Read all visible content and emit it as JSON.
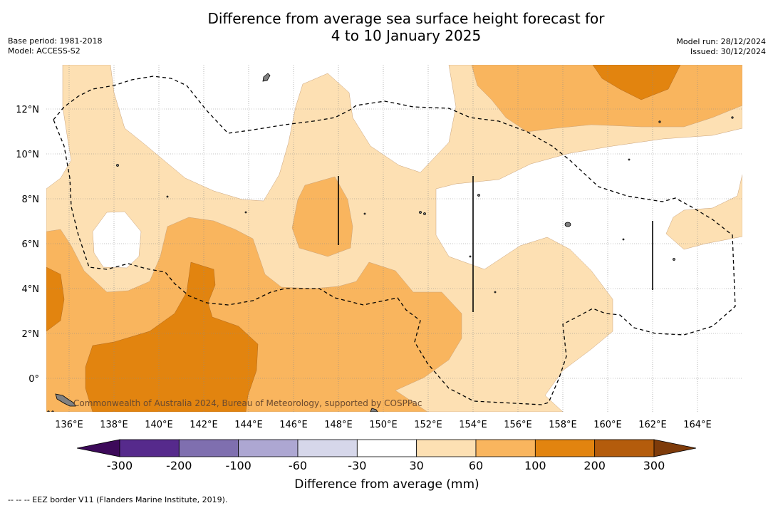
{
  "title": {
    "line1": "Difference from average sea surface height forecast for",
    "line2": "4 to 10 January 2025"
  },
  "meta_left": {
    "base_period": "Base period: 1981-2018",
    "model": "Model: ACCESS-S2"
  },
  "meta_right": {
    "model_run": "Model run: 28/12/2024",
    "issued": "Issued: 30/12/2024"
  },
  "map": {
    "lon_labels": [
      "136°E",
      "138°E",
      "140°E",
      "142°E",
      "144°E",
      "146°E",
      "148°E",
      "150°E",
      "152°E",
      "154°E",
      "156°E",
      "158°E",
      "160°E",
      "162°E",
      "164°E"
    ],
    "lat_labels": [
      "12°N",
      "10°N",
      "8°N",
      "6°N",
      "4°N",
      "2°N",
      "0°"
    ],
    "copyright": "Commonwealth of Australia 2024, Bureau of Meteorology, supported by COSPPac"
  },
  "colorbar": {
    "tick_labels": [
      "-300",
      "-200",
      "-100",
      "-60",
      "-30",
      "30",
      "60",
      "100",
      "200",
      "300"
    ],
    "colors": [
      "#3d0a5a",
      "#562a8c",
      "#7f6faf",
      "#ada7d2",
      "#d6d7ea",
      "#ffffff",
      "#fde0b3",
      "#f9b55e",
      "#e2840f",
      "#b45c0c",
      "#7e3b0a"
    ],
    "label": "Difference from average (mm)"
  },
  "footnote": "-- -- -- EEZ border V11 (Flanders Marine Institute, 2019)."
}
